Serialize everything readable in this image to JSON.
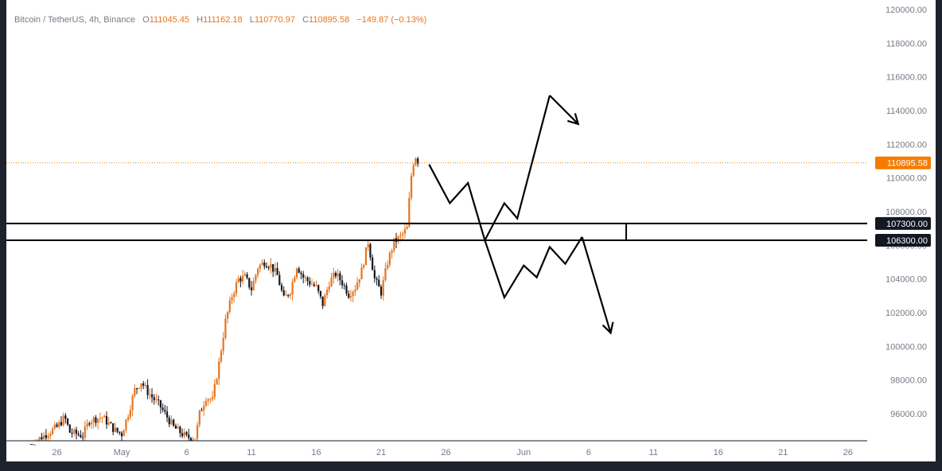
{
  "header": {
    "symbol": "Bitcoin / TetherUS, 4h, Binance",
    "open_label": "O",
    "open_value": "111045.45",
    "high_label": "H",
    "high_value": "111162.18",
    "low_label": "L",
    "low_value": "110770.97",
    "close_label": "C",
    "close_value": "110895.58",
    "change": "−149.87 (−0.13%)"
  },
  "colors": {
    "background": "#ffffff",
    "frame": "#1e222d",
    "up": "#e8741c",
    "down": "#131722",
    "axis_text": "#787b86",
    "price_tag": "#f57c00",
    "level_tag": "#131722"
  },
  "chart_data": {
    "type": "candlestick",
    "y_axis_ticks": [
      "120000.00",
      "118000.00",
      "116000.00",
      "114000.00",
      "112000.00",
      "110000.00",
      "108000.00",
      "106000.00",
      "104000.00",
      "102000.00",
      "100000.00",
      "98000.00",
      "96000.00"
    ],
    "ylim": [
      94400,
      120300
    ],
    "x_axis_ticks": [
      {
        "label": "26",
        "day": -5
      },
      {
        "label": "May",
        "day": 0
      },
      {
        "label": "6",
        "day": 5
      },
      {
        "label": "11",
        "day": 10
      },
      {
        "label": "16",
        "day": 15
      },
      {
        "label": "21",
        "day": 20
      },
      {
        "label": "26",
        "day": 25
      },
      {
        "label": "Jun",
        "day": 31
      },
      {
        "label": "6",
        "day": 36
      },
      {
        "label": "11",
        "day": 41
      },
      {
        "label": "16",
        "day": 46
      },
      {
        "label": "21",
        "day": 51
      },
      {
        "label": "26",
        "day": 56
      }
    ],
    "price_anchors": [
      [
        -7,
        94200
      ],
      [
        -5,
        95200
      ],
      [
        -4.4,
        95800
      ],
      [
        -4,
        94900
      ],
      [
        -3,
        94700
      ],
      [
        -2.5,
        95600
      ],
      [
        -1.5,
        95800
      ],
      [
        -0.5,
        95000
      ],
      [
        0,
        94800
      ],
      [
        0.5,
        96000
      ],
      [
        1,
        97400
      ],
      [
        1.5,
        97900
      ],
      [
        2,
        97300
      ],
      [
        3,
        96400
      ],
      [
        4,
        95200
      ],
      [
        5,
        94600
      ],
      [
        5.7,
        94600
      ],
      [
        6,
        96000
      ],
      [
        6.5,
        97000
      ],
      [
        7,
        96800
      ],
      [
        7.5,
        99000
      ],
      [
        8,
        101500
      ],
      [
        8.5,
        103000
      ],
      [
        9,
        104000
      ],
      [
        9.5,
        104100
      ],
      [
        10,
        103400
      ],
      [
        10.5,
        104700
      ],
      [
        11,
        105000
      ],
      [
        11.5,
        104800
      ],
      [
        12,
        104200
      ],
      [
        12.5,
        102800
      ],
      [
        13,
        103300
      ],
      [
        13.5,
        104800
      ],
      [
        14,
        104100
      ],
      [
        15,
        103500
      ],
      [
        15.5,
        102500
      ],
      [
        16,
        103800
      ],
      [
        16.5,
        104300
      ],
      [
        17,
        103800
      ],
      [
        17.5,
        103100
      ],
      [
        18,
        103500
      ],
      [
        18.5,
        104500
      ],
      [
        19,
        106200
      ],
      [
        19.5,
        104000
      ],
      [
        20,
        103200
      ],
      [
        20.5,
        105000
      ],
      [
        21,
        106200
      ],
      [
        21.5,
        106500
      ],
      [
        22,
        107000
      ],
      [
        22.3,
        110000
      ],
      [
        22.6,
        111400
      ],
      [
        22.9,
        110900
      ]
    ],
    "last_price": 110895.58,
    "last_price_label": "110895.58",
    "levels": [
      {
        "value": 107300,
        "label": "107300.00"
      },
      {
        "value": 106300,
        "label": "106300.00"
      }
    ],
    "level_box": {
      "x_start_day": -10,
      "x_end_day": 38.9
    },
    "bullish_path": [
      [
        23.7,
        110800
      ],
      [
        25.3,
        108500
      ],
      [
        26.7,
        109700
      ],
      [
        28.0,
        106300
      ],
      [
        29.5,
        108500
      ],
      [
        30.5,
        107600
      ],
      [
        33.0,
        114900
      ]
    ],
    "bullish_arrow": [
      [
        33.0,
        114900
      ],
      [
        35.2,
        113200
      ]
    ],
    "bearish_path": [
      [
        28.0,
        106300
      ],
      [
        29.5,
        102900
      ],
      [
        31.0,
        104800
      ],
      [
        32.0,
        104100
      ],
      [
        33.0,
        105900
      ],
      [
        34.2,
        104900
      ],
      [
        35.5,
        106500
      ]
    ],
    "bearish_arrow": [
      [
        35.5,
        106500
      ],
      [
        37.7,
        100800
      ]
    ]
  }
}
